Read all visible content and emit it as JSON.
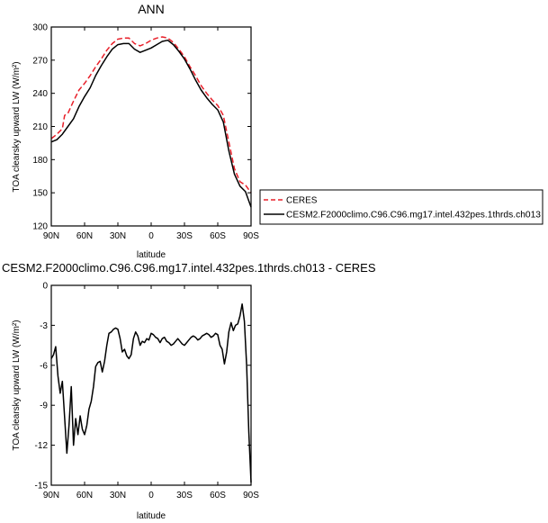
{
  "chart_data": [
    {
      "type": "line",
      "title": "ANN",
      "xlabel": "latitude",
      "ylabel": "TOA clearsky upward LW (W/m²)",
      "xlim": [
        90,
        -90
      ],
      "ylim": [
        120,
        300
      ],
      "xticks": [
        {
          "value": 90,
          "label": "90N"
        },
        {
          "value": 60,
          "label": "60N"
        },
        {
          "value": 30,
          "label": "30N"
        },
        {
          "value": 0,
          "label": "0"
        },
        {
          "value": -30,
          "label": "30S"
        },
        {
          "value": -60,
          "label": "60S"
        },
        {
          "value": -90,
          "label": "90S"
        }
      ],
      "yticks": [
        120,
        150,
        180,
        210,
        240,
        270,
        300
      ],
      "legend": {
        "placement": "right",
        "entries": [
          "CERES",
          "CESM2.F2000climo.C96.C96.mg17.intel.432pes.1thrds.ch013"
        ]
      },
      "series": [
        {
          "name": "CERES",
          "color": "#e8202a",
          "dash": true,
          "x": [
            90,
            85,
            80,
            78,
            75,
            70,
            65,
            60,
            55,
            50,
            45,
            40,
            35,
            30,
            25,
            20,
            15,
            10,
            5,
            0,
            -5,
            -10,
            -15,
            -20,
            -25,
            -30,
            -35,
            -40,
            -45,
            -50,
            -55,
            -60,
            -65,
            -70,
            -75,
            -80,
            -85,
            -90
          ],
          "y": [
            199,
            203,
            208,
            220,
            222,
            233,
            243,
            249,
            256,
            264,
            271,
            279,
            285,
            289,
            290,
            290,
            285,
            283,
            285,
            288,
            290,
            291,
            290,
            286,
            280,
            273,
            264,
            256,
            247,
            240,
            234,
            229,
            220,
            196,
            172,
            160,
            157,
            150
          ]
        },
        {
          "name": "CESM2.F2000climo.C96.C96.mg17.intel.432pes.1thrds.ch013",
          "color": "#000000",
          "dash": false,
          "x": [
            90,
            85,
            80,
            75,
            70,
            65,
            60,
            55,
            50,
            45,
            40,
            35,
            30,
            25,
            20,
            15,
            10,
            5,
            0,
            -5,
            -10,
            -15,
            -20,
            -25,
            -30,
            -35,
            -40,
            -45,
            -50,
            -55,
            -60,
            -65,
            -70,
            -75,
            -80,
            -85,
            -90
          ],
          "y": [
            196,
            198,
            203,
            210,
            217,
            228,
            237,
            245,
            256,
            265,
            273,
            280,
            284,
            285,
            285,
            280,
            277,
            279,
            281,
            284,
            287,
            288,
            284,
            278,
            271,
            262,
            252,
            243,
            236,
            230,
            225,
            214,
            188,
            167,
            156,
            151,
            137
          ]
        }
      ]
    },
    {
      "type": "line",
      "title": "CESM2.F2000climo.C96.C96.mg17.intel.432pes.1thrds.ch013 - CERES",
      "xlabel": "latitude",
      "ylabel": "TOA clearsky upward LW (W/m²)",
      "xlim": [
        90,
        -90
      ],
      "ylim": [
        -15,
        0
      ],
      "xticks": [
        {
          "value": 90,
          "label": "90N"
        },
        {
          "value": 60,
          "label": "60N"
        },
        {
          "value": 30,
          "label": "30N"
        },
        {
          "value": 0,
          "label": "0"
        },
        {
          "value": -30,
          "label": "30S"
        },
        {
          "value": -60,
          "label": "60S"
        },
        {
          "value": -90,
          "label": "90S"
        }
      ],
      "yticks": [
        0,
        -3,
        -6,
        -9,
        -12,
        -15
      ],
      "series": [
        {
          "color": "#000000",
          "dash": false,
          "x": [
            90,
            88,
            86,
            84,
            82,
            80,
            78,
            76,
            74,
            72,
            70,
            68,
            66,
            64,
            62,
            60,
            58,
            56,
            54,
            52,
            50,
            48,
            46,
            44,
            42,
            40,
            38,
            36,
            34,
            32,
            30,
            28,
            26,
            24,
            22,
            20,
            18,
            16,
            14,
            12,
            10,
            8,
            6,
            4,
            2,
            0,
            -2,
            -4,
            -6,
            -8,
            -10,
            -12,
            -14,
            -16,
            -18,
            -20,
            -22,
            -24,
            -26,
            -28,
            -30,
            -32,
            -34,
            -36,
            -38,
            -40,
            -42,
            -44,
            -46,
            -48,
            -50,
            -52,
            -54,
            -56,
            -58,
            -60,
            -62,
            -64,
            -66,
            -68,
            -70,
            -72,
            -74,
            -76,
            -78,
            -80,
            -82,
            -84,
            -86,
            -88,
            -90
          ],
          "y": [
            -5.5,
            -5.2,
            -4.6,
            -6.8,
            -8.1,
            -7.2,
            -9.9,
            -12.6,
            -10.5,
            -7.6,
            -12.0,
            -10.0,
            -11.2,
            -9.8,
            -10.8,
            -11.2,
            -10.5,
            -9.3,
            -8.7,
            -7.6,
            -6.1,
            -5.8,
            -5.7,
            -6.5,
            -5.7,
            -4.5,
            -3.6,
            -3.5,
            -3.3,
            -3.2,
            -3.3,
            -4.0,
            -5.0,
            -4.8,
            -5.3,
            -5.5,
            -5.2,
            -4.0,
            -3.5,
            -3.8,
            -4.5,
            -4.2,
            -4.3,
            -4.0,
            -4.1,
            -3.6,
            -3.7,
            -3.9,
            -4.0,
            -4.3,
            -4.0,
            -3.9,
            -4.2,
            -4.3,
            -4.5,
            -4.4,
            -4.2,
            -4.0,
            -4.2,
            -4.4,
            -4.5,
            -4.3,
            -4.1,
            -3.9,
            -3.8,
            -3.9,
            -4.1,
            -4.0,
            -3.8,
            -3.7,
            -3.6,
            -3.7,
            -3.9,
            -3.8,
            -3.6,
            -3.7,
            -4.5,
            -4.8,
            -5.9,
            -5.0,
            -3.5,
            -2.8,
            -3.4,
            -3.0,
            -2.9,
            -2.3,
            -1.4,
            -2.7,
            -6.0,
            -11.0,
            -14.8
          ]
        }
      ]
    }
  ]
}
